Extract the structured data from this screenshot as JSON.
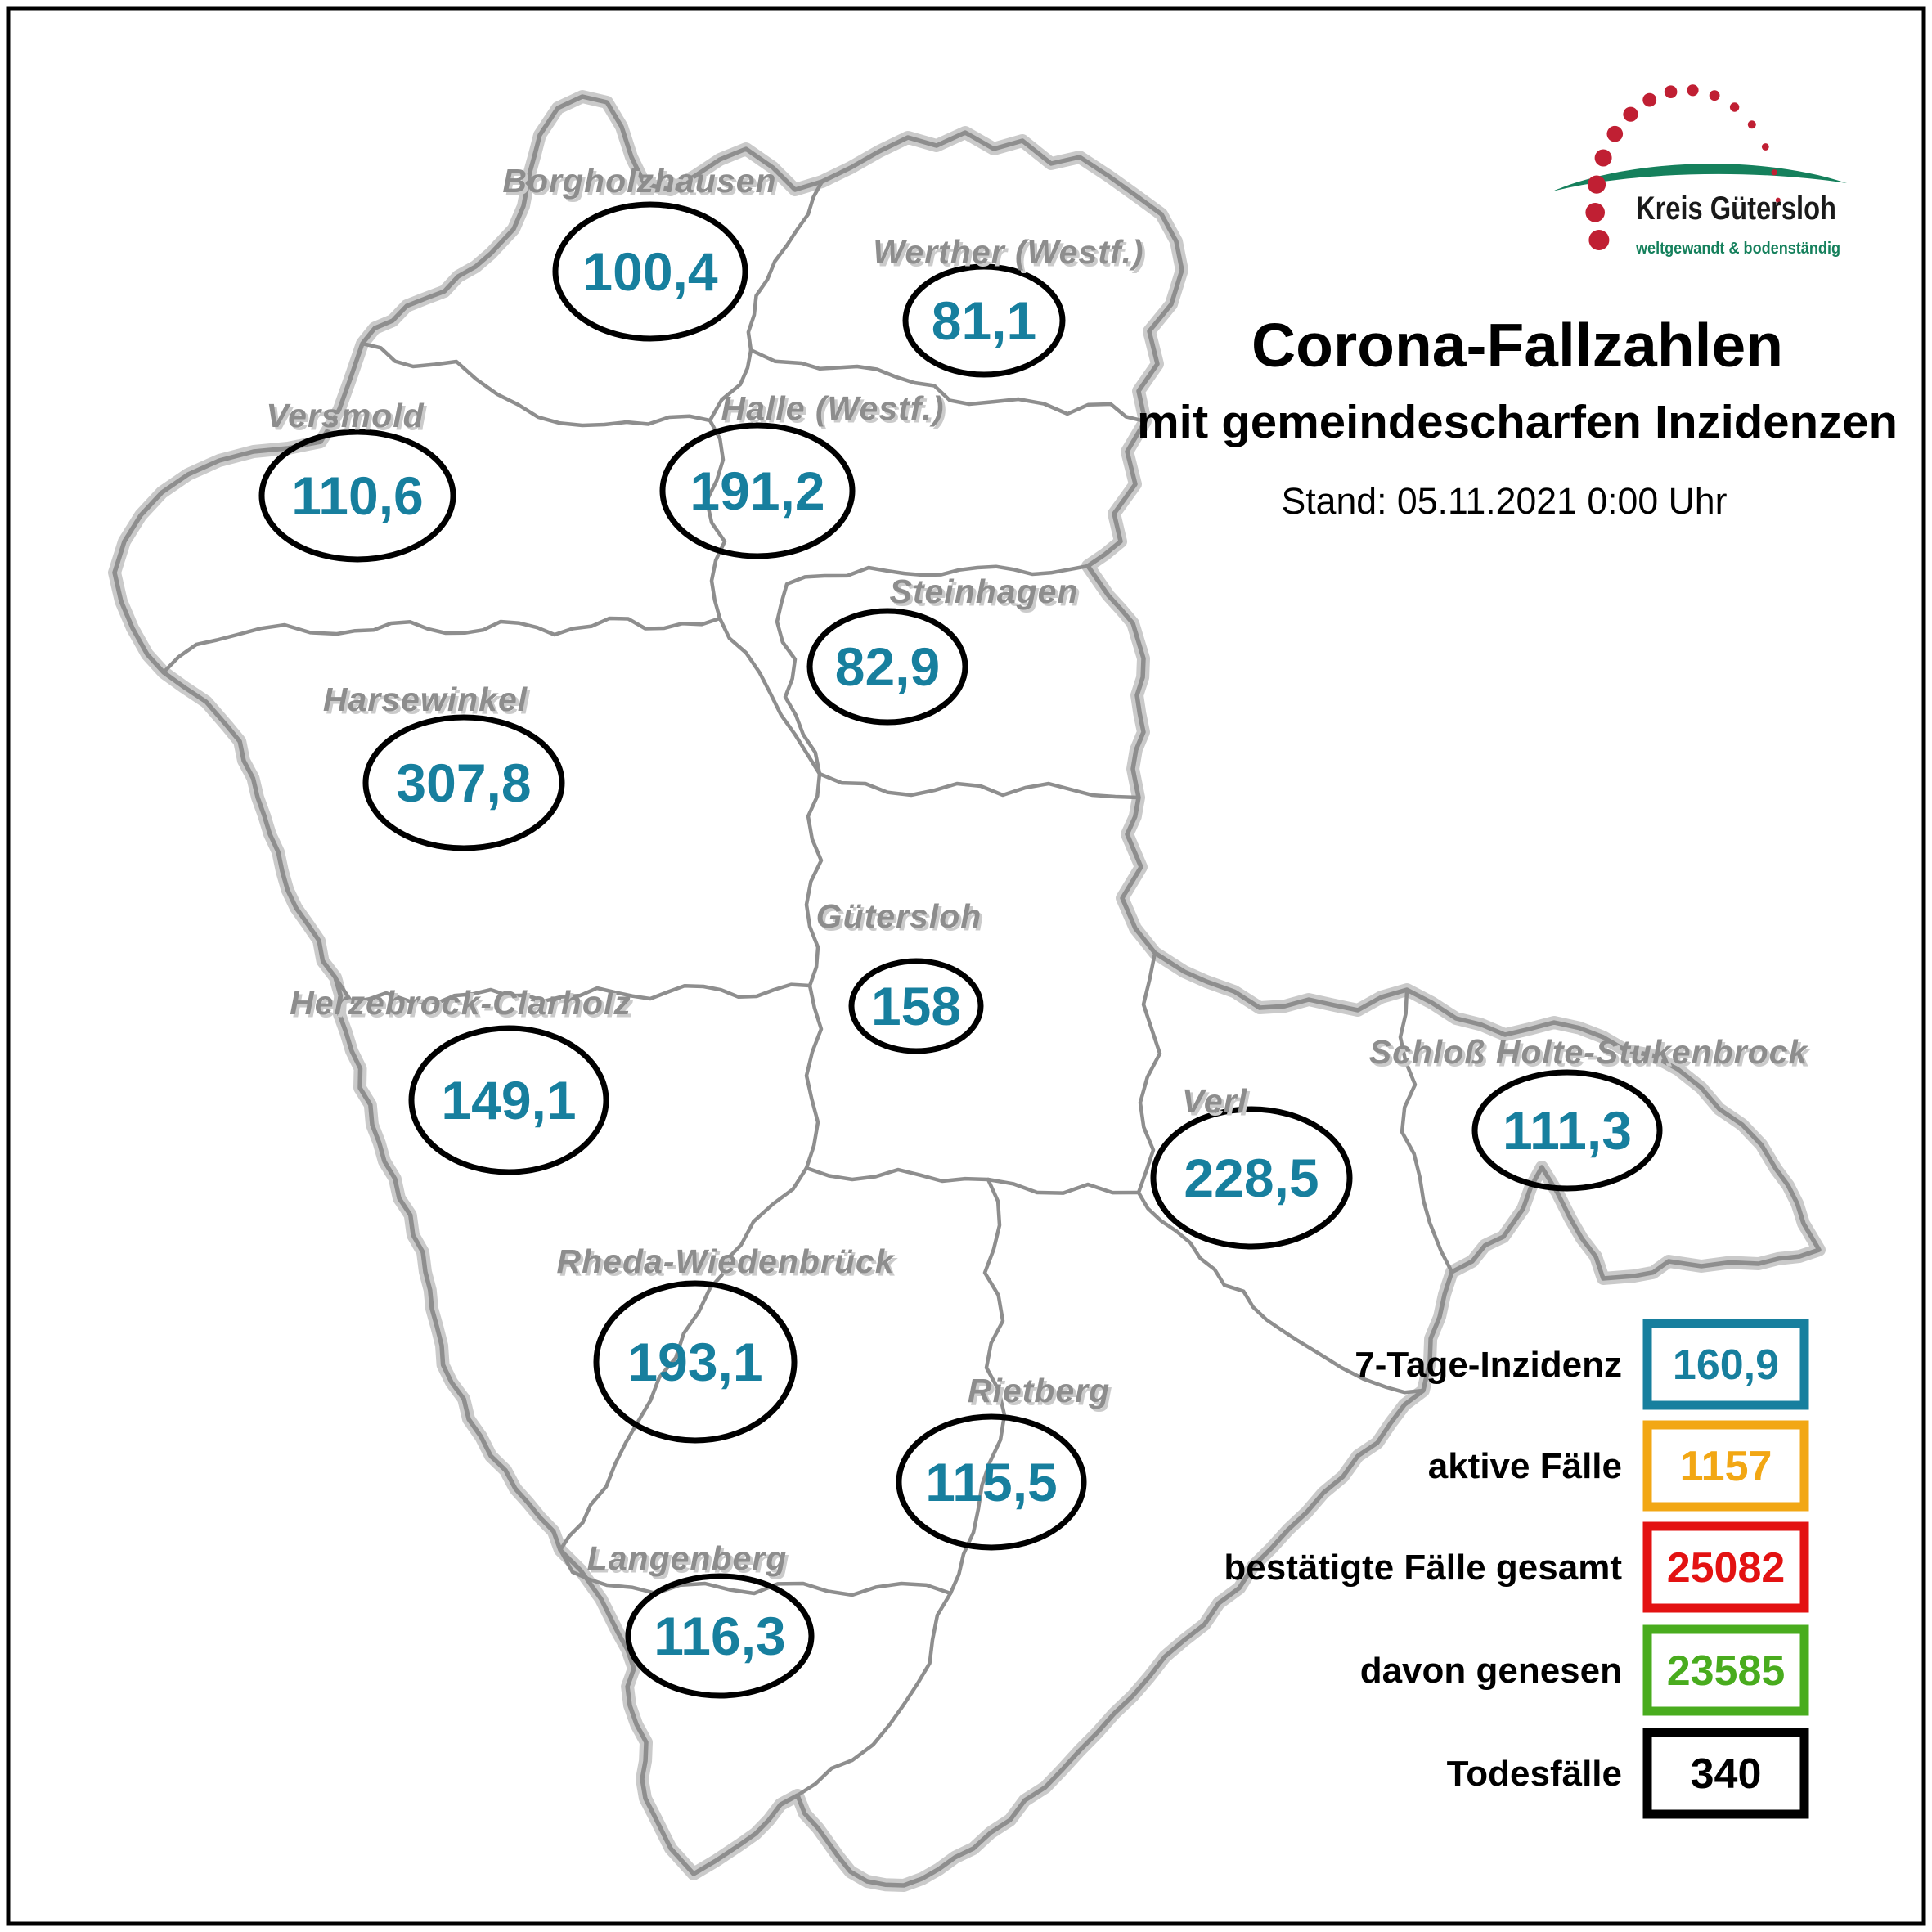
{
  "header": {
    "title": "Corona-Fallzahlen",
    "subtitle": "mit gemeindescharfen Inzidenzen",
    "stand": "Stand: 05.11.2021 0:00 Uhr"
  },
  "logo": {
    "name": "Kreis Gütersloh",
    "tagline": "weltgewandt & bodenständig",
    "dot_color": "#c01f33",
    "swoosh_color": "#15805c",
    "tagline_color": "#15805c"
  },
  "map": {
    "municipalities": [
      {
        "id": "borgholzhausen",
        "name": "Borgholzhausen",
        "incidence": "100,4"
      },
      {
        "id": "werther",
        "name": "Werther (Westf.)",
        "incidence": "81,1"
      },
      {
        "id": "versmold",
        "name": "Versmold",
        "incidence": "110,6"
      },
      {
        "id": "halle",
        "name": "Halle (Westf.)",
        "incidence": "191,2"
      },
      {
        "id": "steinhagen",
        "name": "Steinhagen",
        "incidence": "82,9"
      },
      {
        "id": "harsewinkel",
        "name": "Harsewinkel",
        "incidence": "307,8"
      },
      {
        "id": "guetersloh",
        "name": "Gütersloh",
        "incidence": "158"
      },
      {
        "id": "herzebrock",
        "name": "Herzebrock-Clarholz",
        "incidence": "149,1"
      },
      {
        "id": "verl",
        "name": "Verl",
        "incidence": "228,5"
      },
      {
        "id": "shs",
        "name": "Schloß Holte-Stukenbrock",
        "incidence": "111,3"
      },
      {
        "id": "rheda",
        "name": "Rheda-Wiedenbrück",
        "incidence": "193,1"
      },
      {
        "id": "rietberg",
        "name": "Rietberg",
        "incidence": "115,5"
      },
      {
        "id": "langenberg",
        "name": "Langenberg",
        "incidence": "116,3"
      }
    ]
  },
  "legend": {
    "items": [
      {
        "label": "7-Tage-Inzidenz",
        "value": "160,9",
        "color": "#177f9e"
      },
      {
        "label": "aktive Fälle",
        "value": "1157",
        "color": "#f2a714"
      },
      {
        "label": "bestätigte Fälle gesamt",
        "value": "25082",
        "color": "#e31212"
      },
      {
        "label": "davon genesen",
        "value": "23585",
        "color": "#49ac1e"
      },
      {
        "label": "Todesfälle",
        "value": "340",
        "color": "#000000"
      }
    ]
  },
  "colors": {
    "incidence": "#177f9e",
    "label_gray": "#8d8d8d",
    "boundary": "#8e8e8e",
    "outer_band": "#cacaca"
  }
}
